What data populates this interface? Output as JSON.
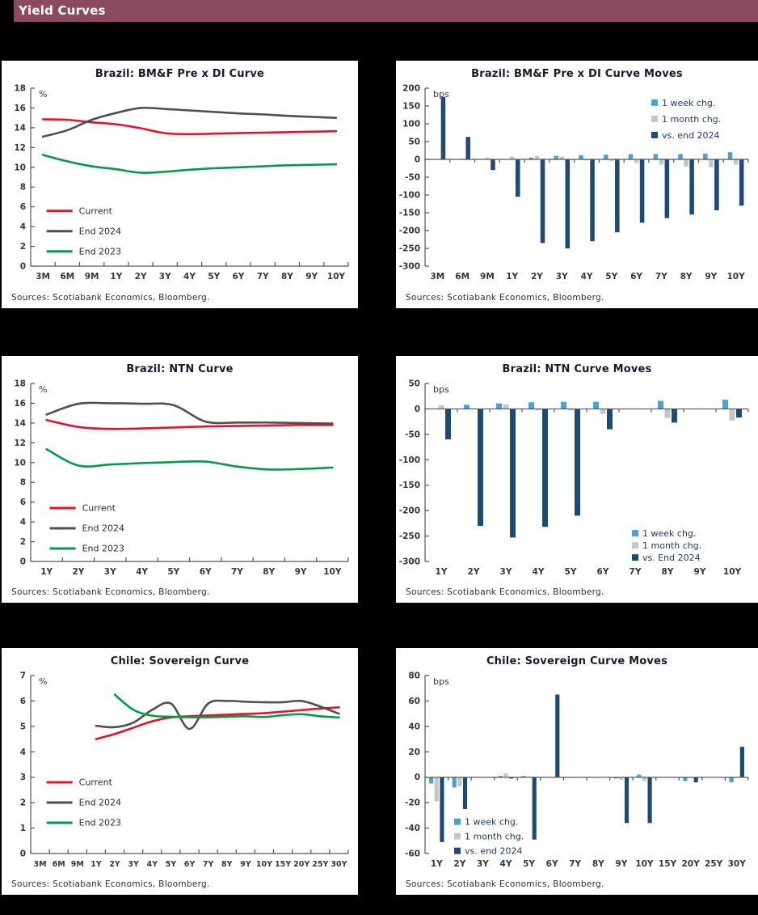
{
  "page": {
    "header_title": "Yield Curves",
    "header_bg": "#8c4a5e",
    "background": "#000000"
  },
  "source_note": "Sources: Scotiabank Economics, Bloomberg.",
  "chart_data": [
    {
      "type": "line",
      "title": "Brazil: BM&F Pre x DI Curve",
      "unit": "%",
      "ylim": [
        0,
        18
      ],
      "ystep": 2,
      "grid": false,
      "categories": [
        "3M",
        "6M",
        "9M",
        "1Y",
        "2Y",
        "3Y",
        "4Y",
        "5Y",
        "6Y",
        "7Y",
        "8Y",
        "9Y",
        "10Y"
      ],
      "series": [
        {
          "name": "Current",
          "color": "#e8112a",
          "values": [
            14.85,
            14.8,
            14.55,
            14.35,
            13.95,
            13.45,
            13.35,
            13.4,
            13.45,
            13.5,
            13.55,
            13.6,
            13.65
          ]
        },
        {
          "name": "End 2024",
          "color": "#4f4f4f",
          "values": [
            13.1,
            13.75,
            14.8,
            15.5,
            16.0,
            15.9,
            15.75,
            15.6,
            15.45,
            15.35,
            15.2,
            15.1,
            15.0
          ]
        },
        {
          "name": "End 2023",
          "color": "#009a49",
          "values": [
            11.25,
            10.6,
            10.1,
            9.8,
            9.45,
            9.55,
            9.75,
            9.9,
            10.0,
            10.1,
            10.2,
            10.25,
            10.3
          ]
        }
      ],
      "legend": {
        "x": 0.05,
        "y": 0.69,
        "dy": 25,
        "swatch": "line",
        "position": "inside-left-bottom"
      }
    },
    {
      "type": "bar",
      "title": "Brazil: BM&F Pre x DI Curve Moves",
      "unit": "bps",
      "ylim": [
        -300,
        200
      ],
      "ystep": 50,
      "grid": false,
      "categories": [
        "3M",
        "6M",
        "9M",
        "1Y",
        "2Y",
        "3Y",
        "4Y",
        "5Y",
        "6Y",
        "7Y",
        "8Y",
        "9Y",
        "10Y"
      ],
      "series": [
        {
          "name": "1 week chg.",
          "color": "#49a2d1",
          "values": [
            0,
            0,
            0,
            0,
            5,
            10,
            12,
            13,
            15,
            15,
            15,
            16,
            20
          ]
        },
        {
          "name": "1 month chg.",
          "color": "#c6c6c6",
          "values": [
            0,
            3,
            5,
            8,
            10,
            8,
            -3,
            -5,
            -10,
            -15,
            -20,
            -22,
            -15
          ]
        },
        {
          "name": "vs. end 2024",
          "color": "#1e4a76",
          "values": [
            175,
            63,
            -30,
            -105,
            -235,
            -250,
            -230,
            -205,
            -178,
            -165,
            -155,
            -143,
            -130
          ]
        }
      ],
      "legend": {
        "x": 0.7,
        "y": 0.095,
        "dy": 20,
        "swatch": "square",
        "position": "inside-top-right"
      }
    },
    {
      "type": "line",
      "title": "Brazil: NTN Curve",
      "unit": "%",
      "ylim": [
        0,
        18
      ],
      "ystep": 2,
      "grid": false,
      "categories": [
        "1Y",
        "2Y",
        "3Y",
        "4Y",
        "5Y",
        "6Y",
        "7Y",
        "8Y",
        "9Y",
        "10Y"
      ],
      "series": [
        {
          "name": "Current",
          "color": "#e8112a",
          "values": [
            14.3,
            13.6,
            13.4,
            13.45,
            13.55,
            13.65,
            13.7,
            13.75,
            13.8,
            13.8
          ]
        },
        {
          "name": "End 2024",
          "color": "#4f4f4f",
          "values": [
            14.85,
            15.95,
            16.0,
            15.95,
            15.8,
            14.15,
            14.05,
            14.05,
            14.0,
            13.95
          ]
        },
        {
          "name": "End 2023",
          "color": "#009a49",
          "values": [
            11.35,
            9.7,
            9.8,
            9.95,
            10.05,
            10.1,
            9.6,
            9.3,
            9.35,
            9.5
          ]
        }
      ],
      "legend": {
        "x": 0.06,
        "y": 0.7,
        "dy": 25,
        "swatch": "line",
        "position": "inside-left-bottom"
      }
    },
    {
      "type": "bar",
      "title": "Brazil: NTN Curve Moves",
      "unit": "bps",
      "ylim": [
        -300,
        50
      ],
      "ystep": 50,
      "grid": false,
      "categories": [
        "1Y",
        "2Y",
        "3Y",
        "4Y",
        "5Y",
        "6Y",
        "7Y",
        "8Y",
        "9Y",
        "10Y"
      ],
      "series": [
        {
          "name": "1 week chg.",
          "color": "#49a2d1",
          "values": [
            0,
            8,
            11,
            13,
            14,
            14,
            0,
            16,
            0,
            18
          ]
        },
        {
          "name": "1 month chg.",
          "color": "#c6c6c6",
          "values": [
            7,
            0,
            9,
            -3,
            -3,
            -10,
            0,
            -18,
            0,
            -23
          ]
        },
        {
          "name": "vs. End 2024",
          "color": "#1e4a76",
          "values": [
            -60,
            -230,
            -253,
            -232,
            -210,
            -40,
            0,
            -27,
            0,
            -17
          ]
        }
      ],
      "legend": {
        "x": 0.64,
        "y": 0.855,
        "dy": 15,
        "swatch": "square",
        "position": "inside-bottom-right"
      }
    },
    {
      "type": "line",
      "title": "Chile: Sovereign Curve",
      "unit": "%",
      "ylim": [
        0,
        7
      ],
      "ystep": 1,
      "grid": false,
      "categories": [
        "3M",
        "6M",
        "9M",
        "1Y",
        "2Y",
        "3Y",
        "4Y",
        "5Y",
        "6Y",
        "7Y",
        "8Y",
        "9Y",
        "10Y",
        "15Y",
        "20Y",
        "25Y",
        "30Y"
      ],
      "series": [
        {
          "name": "Current",
          "color": "#e8112a",
          "values": [
            null,
            null,
            null,
            4.5,
            4.7,
            4.95,
            5.2,
            5.35,
            5.4,
            5.43,
            5.46,
            5.49,
            5.52,
            5.58,
            5.64,
            5.7,
            5.75
          ]
        },
        {
          "name": "End 2024",
          "color": "#4f4f4f",
          "values": [
            null,
            null,
            null,
            5.02,
            4.97,
            5.15,
            5.65,
            5.9,
            4.9,
            5.9,
            6.0,
            5.97,
            5.95,
            5.95,
            6.0,
            5.78,
            5.5
          ]
        },
        {
          "name": "End 2023",
          "color": "#009a49",
          "values": [
            null,
            null,
            null,
            null,
            6.25,
            5.65,
            5.42,
            5.38,
            5.36,
            5.36,
            5.38,
            5.4,
            5.37,
            5.44,
            5.48,
            5.4,
            5.35
          ]
        }
      ],
      "legend": {
        "x": 0.05,
        "y": 0.6,
        "dy": 25,
        "swatch": "line",
        "position": "inside-left-bottom"
      }
    },
    {
      "type": "bar",
      "title": "Chile: Sovereign Curve Moves",
      "unit": "bps",
      "ylim": [
        -60,
        80
      ],
      "ystep": 20,
      "grid": false,
      "categories": [
        "1Y",
        "2Y",
        "3Y",
        "4Y",
        "5Y",
        "6Y",
        "7Y",
        "8Y",
        "9Y",
        "10Y",
        "15Y",
        "20Y",
        "25Y",
        "30Y"
      ],
      "series": [
        {
          "name": "1 week chg.",
          "color": "#49a2d1",
          "values": [
            -5,
            -8,
            0,
            1,
            1,
            0,
            0,
            0,
            -1,
            2,
            0,
            -3,
            0,
            -4
          ]
        },
        {
          "name": "1 month chg.",
          "color": "#c6c6c6",
          "values": [
            -19,
            -7,
            0,
            3,
            0,
            0,
            0,
            0,
            -2,
            -3,
            0,
            0,
            0,
            0
          ]
        },
        {
          "name": "vs. end 2024",
          "color": "#1e4a76",
          "values": [
            -51,
            -25,
            0,
            -1,
            -49,
            65,
            0,
            0,
            -36,
            -36,
            0,
            -4,
            0,
            24
          ]
        }
      ],
      "legend": {
        "x": 0.09,
        "y": 0.835,
        "dy": 18,
        "swatch": "square",
        "position": "inside-bottom-left"
      }
    }
  ]
}
